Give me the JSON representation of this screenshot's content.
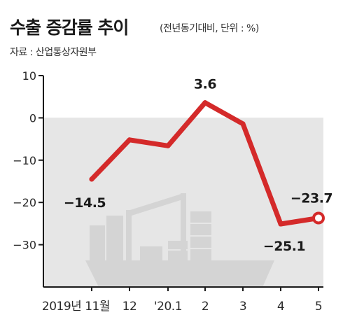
{
  "header": {
    "title": "수출 증감률 추이",
    "subtitle": "(전년동기대비, 단위 : %)",
    "source": "자료 : 산업통상자원부"
  },
  "chart_data": {
    "type": "line",
    "title": "수출 증감률 추이",
    "subtitle": "(전년동기대비, 단위 : %)",
    "source": "자료 : 산업통상자원부",
    "xlabel": "",
    "ylabel": "",
    "categories": [
      "2019년 11월",
      "12",
      "'20.1",
      "2",
      "3",
      "4",
      "5"
    ],
    "series": [
      {
        "values": [
          -14.5,
          -5.2,
          -6.6,
          3.6,
          -1.4,
          -25.1,
          -23.7
        ]
      }
    ],
    "data_labels": [
      {
        "index": 0,
        "text": "−14.5"
      },
      {
        "index": 3,
        "text": "3.6"
      },
      {
        "index": 5,
        "text": "−25.1"
      },
      {
        "index": 6,
        "text": "−23.7"
      }
    ],
    "yticks": [
      10,
      0,
      -10,
      -20,
      -30
    ],
    "ytick_labels": [
      "10",
      "0",
      "−10",
      "−20",
      "−30"
    ],
    "ylim": [
      -40,
      10
    ],
    "grid": false,
    "colors": {
      "line": "#d42a2a",
      "plot_background": "#e6e6e6",
      "axis": "#1a1a1a",
      "background_illustration": "#d6d6d6"
    },
    "background_illustration": "cargo-ship-icon"
  }
}
